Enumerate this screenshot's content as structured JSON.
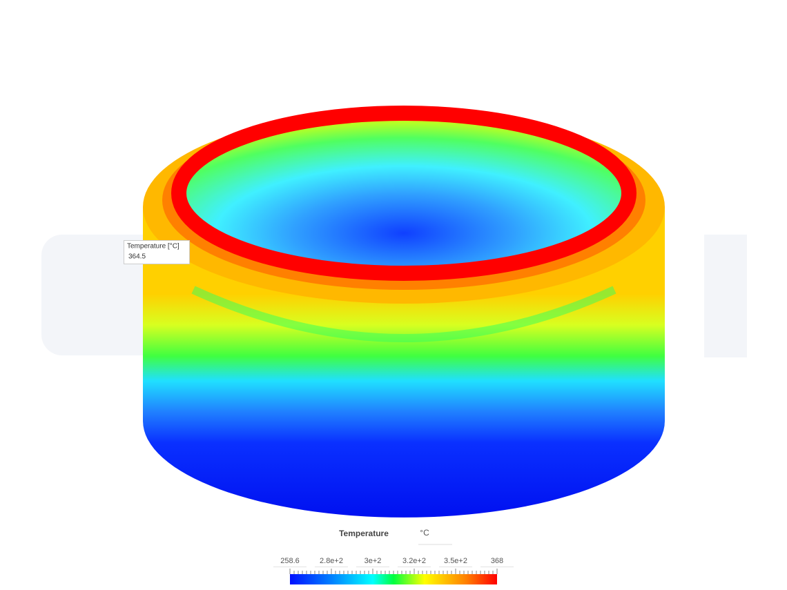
{
  "probe": {
    "label": "Temperature [°C]",
    "value": "364.5"
  },
  "legend": {
    "title": "Temperature",
    "unit": "°C",
    "ticks": [
      "258.6",
      "2.8e+2",
      "3e+2",
      "3.2e+2",
      "3.5e+2",
      "368"
    ]
  }
}
